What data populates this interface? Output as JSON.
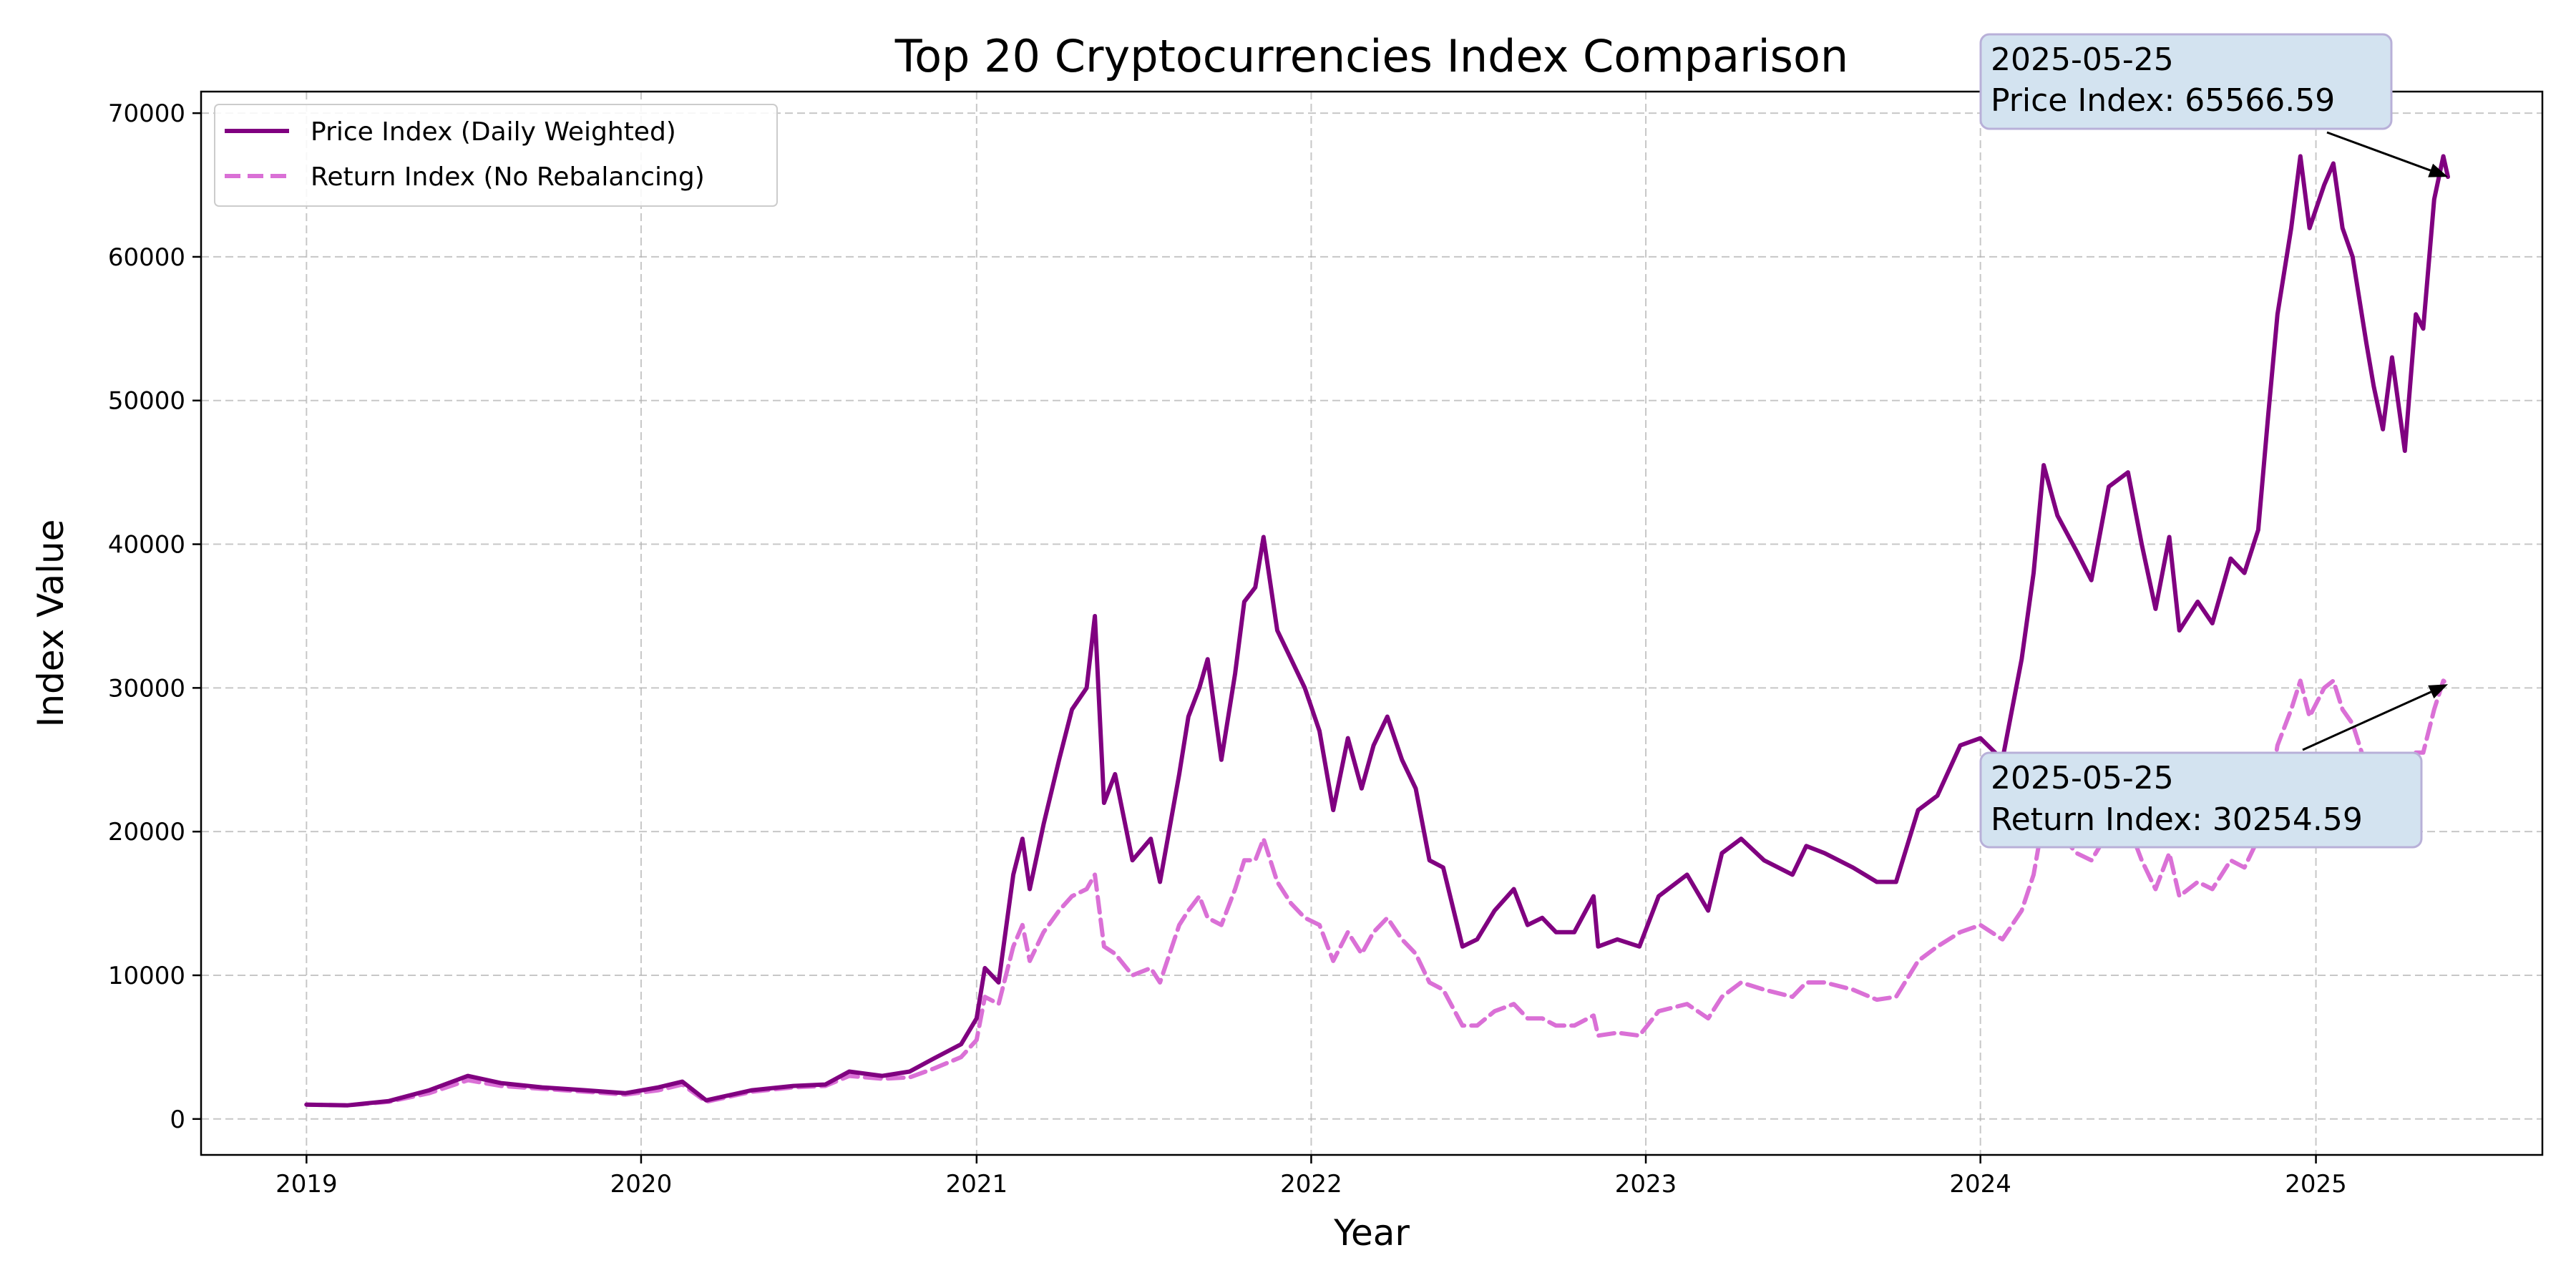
{
  "chart_data": {
    "type": "line",
    "title": "Top 20 Cryptocurrencies Index Comparison",
    "xlabel": "Year",
    "ylabel": "Index Value",
    "xlim": [
      "2018-09-08",
      "2025-09-05"
    ],
    "ylim": [
      -2500,
      71500
    ],
    "x_ticks": [
      "2019",
      "2020",
      "2021",
      "2022",
      "2023",
      "2024",
      "2025"
    ],
    "y_ticks": [
      0,
      10000,
      20000,
      30000,
      40000,
      50000,
      60000,
      70000
    ],
    "y_tick_labels": [
      "0",
      "10000",
      "20000",
      "30000",
      "40000",
      "50000",
      "60000",
      "70000"
    ],
    "grid": true,
    "legend_position": "upper-left",
    "series": [
      {
        "name": "Price Index (Daily Weighted)",
        "color": "#800080",
        "style": "solid",
        "points": [
          [
            "2019-01-01",
            1000
          ],
          [
            "2019-02-15",
            950
          ],
          [
            "2019-04-01",
            1250
          ],
          [
            "2019-05-15",
            2000
          ],
          [
            "2019-06-26",
            3000
          ],
          [
            "2019-08-01",
            2500
          ],
          [
            "2019-09-15",
            2200
          ],
          [
            "2019-11-01",
            2000
          ],
          [
            "2019-12-15",
            1800
          ],
          [
            "2020-01-20",
            2200
          ],
          [
            "2020-02-15",
            2600
          ],
          [
            "2020-03-12",
            1300
          ],
          [
            "2020-05-01",
            2000
          ],
          [
            "2020-06-15",
            2300
          ],
          [
            "2020-07-20",
            2400
          ],
          [
            "2020-08-15",
            3300
          ],
          [
            "2020-09-20",
            3000
          ],
          [
            "2020-10-20",
            3300
          ],
          [
            "2020-11-15",
            4200
          ],
          [
            "2020-12-15",
            5200
          ],
          [
            "2021-01-01",
            7000
          ],
          [
            "2021-01-10",
            10500
          ],
          [
            "2021-01-25",
            9500
          ],
          [
            "2021-02-10",
            17000
          ],
          [
            "2021-02-20",
            19500
          ],
          [
            "2021-02-28",
            16000
          ],
          [
            "2021-03-15",
            20500
          ],
          [
            "2021-04-01",
            25000
          ],
          [
            "2021-04-15",
            28500
          ],
          [
            "2021-05-01",
            30000
          ],
          [
            "2021-05-10",
            35000
          ],
          [
            "2021-05-20",
            22000
          ],
          [
            "2021-06-01",
            24000
          ],
          [
            "2021-06-20",
            18000
          ],
          [
            "2021-07-10",
            19500
          ],
          [
            "2021-07-20",
            16500
          ],
          [
            "2021-08-10",
            24000
          ],
          [
            "2021-08-20",
            28000
          ],
          [
            "2021-09-01",
            30000
          ],
          [
            "2021-09-10",
            32000
          ],
          [
            "2021-09-25",
            25000
          ],
          [
            "2021-10-10",
            31000
          ],
          [
            "2021-10-20",
            36000
          ],
          [
            "2021-11-01",
            37000
          ],
          [
            "2021-11-10",
            40500
          ],
          [
            "2021-11-25",
            34000
          ],
          [
            "2021-12-10",
            32000
          ],
          [
            "2021-12-25",
            30000
          ],
          [
            "2022-01-10",
            27000
          ],
          [
            "2022-01-25",
            21500
          ],
          [
            "2022-02-10",
            26500
          ],
          [
            "2022-02-25",
            23000
          ],
          [
            "2022-03-10",
            26000
          ],
          [
            "2022-03-25",
            28000
          ],
          [
            "2022-04-10",
            25000
          ],
          [
            "2022-04-25",
            23000
          ],
          [
            "2022-05-10",
            18000
          ],
          [
            "2022-05-25",
            17500
          ],
          [
            "2022-06-15",
            12000
          ],
          [
            "2022-07-01",
            12500
          ],
          [
            "2022-07-20",
            14500
          ],
          [
            "2022-08-10",
            16000
          ],
          [
            "2022-08-25",
            13500
          ],
          [
            "2022-09-10",
            14000
          ],
          [
            "2022-09-25",
            13000
          ],
          [
            "2022-10-15",
            13000
          ],
          [
            "2022-11-05",
            15500
          ],
          [
            "2022-11-10",
            12000
          ],
          [
            "2022-12-01",
            12500
          ],
          [
            "2022-12-25",
            12000
          ],
          [
            "2023-01-15",
            15500
          ],
          [
            "2023-02-15",
            17000
          ],
          [
            "2023-03-10",
            14500
          ],
          [
            "2023-03-25",
            18500
          ],
          [
            "2023-04-15",
            19500
          ],
          [
            "2023-05-10",
            18000
          ],
          [
            "2023-06-10",
            17000
          ],
          [
            "2023-06-25",
            19000
          ],
          [
            "2023-07-15",
            18500
          ],
          [
            "2023-08-15",
            17500
          ],
          [
            "2023-09-10",
            16500
          ],
          [
            "2023-10-01",
            16500
          ],
          [
            "2023-10-25",
            21500
          ],
          [
            "2023-11-15",
            22500
          ],
          [
            "2023-12-10",
            26000
          ],
          [
            "2024-01-01",
            26500
          ],
          [
            "2024-01-25",
            25000
          ],
          [
            "2024-02-15",
            32000
          ],
          [
            "2024-02-28",
            38000
          ],
          [
            "2024-03-10",
            45500
          ],
          [
            "2024-03-25",
            42000
          ],
          [
            "2024-04-15",
            39500
          ],
          [
            "2024-05-01",
            37500
          ],
          [
            "2024-05-20",
            44000
          ],
          [
            "2024-06-10",
            45000
          ],
          [
            "2024-06-25",
            40000
          ],
          [
            "2024-07-10",
            35500
          ],
          [
            "2024-07-25",
            40500
          ],
          [
            "2024-08-05",
            34000
          ],
          [
            "2024-08-25",
            36000
          ],
          [
            "2024-09-10",
            34500
          ],
          [
            "2024-09-30",
            39000
          ],
          [
            "2024-10-15",
            38000
          ],
          [
            "2024-10-30",
            41000
          ],
          [
            "2024-11-10",
            49000
          ],
          [
            "2024-11-20",
            56000
          ],
          [
            "2024-12-05",
            62000
          ],
          [
            "2024-12-15",
            67000
          ],
          [
            "2024-12-25",
            62000
          ],
          [
            "2025-01-10",
            65000
          ],
          [
            "2025-01-20",
            66500
          ],
          [
            "2025-01-30",
            62000
          ],
          [
            "2025-02-10",
            60000
          ],
          [
            "2025-02-25",
            54000
          ],
          [
            "2025-03-05",
            51000
          ],
          [
            "2025-03-15",
            48000
          ],
          [
            "2025-03-25",
            53000
          ],
          [
            "2025-04-08",
            46500
          ],
          [
            "2025-04-20",
            56000
          ],
          [
            "2025-04-28",
            55000
          ],
          [
            "2025-05-10",
            64000
          ],
          [
            "2025-05-20",
            67000
          ],
          [
            "2025-05-25",
            65566.59
          ]
        ]
      },
      {
        "name": "Return Index (No Rebalancing)",
        "color": "#da70d6",
        "style": "dashed",
        "points": [
          [
            "2019-01-01",
            1000
          ],
          [
            "2019-02-15",
            950
          ],
          [
            "2019-04-01",
            1200
          ],
          [
            "2019-05-15",
            1800
          ],
          [
            "2019-06-26",
            2700
          ],
          [
            "2019-08-01",
            2300
          ],
          [
            "2019-09-15",
            2100
          ],
          [
            "2019-11-01",
            1900
          ],
          [
            "2019-12-15",
            1700
          ],
          [
            "2020-01-20",
            2000
          ],
          [
            "2020-02-15",
            2400
          ],
          [
            "2020-03-12",
            1200
          ],
          [
            "2020-05-01",
            1900
          ],
          [
            "2020-06-15",
            2200
          ],
          [
            "2020-07-20",
            2300
          ],
          [
            "2020-08-15",
            3000
          ],
          [
            "2020-09-20",
            2800
          ],
          [
            "2020-10-20",
            2900
          ],
          [
            "2020-11-15",
            3500
          ],
          [
            "2020-12-15",
            4300
          ],
          [
            "2021-01-01",
            5500
          ],
          [
            "2021-01-10",
            8500
          ],
          [
            "2021-01-25",
            8000
          ],
          [
            "2021-02-10",
            12000
          ],
          [
            "2021-02-20",
            13500
          ],
          [
            "2021-02-28",
            11000
          ],
          [
            "2021-03-15",
            13000
          ],
          [
            "2021-04-01",
            14500
          ],
          [
            "2021-04-15",
            15500
          ],
          [
            "2021-05-01",
            16000
          ],
          [
            "2021-05-10",
            17000
          ],
          [
            "2021-05-20",
            12000
          ],
          [
            "2021-06-01",
            11500
          ],
          [
            "2021-06-20",
            10000
          ],
          [
            "2021-07-10",
            10500
          ],
          [
            "2021-07-20",
            9500
          ],
          [
            "2021-08-10",
            13500
          ],
          [
            "2021-08-20",
            14500
          ],
          [
            "2021-09-01",
            15500
          ],
          [
            "2021-09-10",
            14000
          ],
          [
            "2021-09-25",
            13500
          ],
          [
            "2021-10-10",
            16000
          ],
          [
            "2021-10-20",
            18000
          ],
          [
            "2021-11-01",
            18000
          ],
          [
            "2021-11-10",
            19500
          ],
          [
            "2021-11-25",
            16500
          ],
          [
            "2021-12-10",
            15000
          ],
          [
            "2021-12-25",
            14000
          ],
          [
            "2022-01-10",
            13500
          ],
          [
            "2022-01-25",
            11000
          ],
          [
            "2022-02-10",
            13000
          ],
          [
            "2022-02-25",
            11500
          ],
          [
            "2022-03-10",
            13000
          ],
          [
            "2022-03-25",
            14000
          ],
          [
            "2022-04-10",
            12500
          ],
          [
            "2022-04-25",
            11500
          ],
          [
            "2022-05-10",
            9500
          ],
          [
            "2022-05-25",
            9000
          ],
          [
            "2022-06-15",
            6500
          ],
          [
            "2022-07-01",
            6500
          ],
          [
            "2022-07-20",
            7500
          ],
          [
            "2022-08-10",
            8000
          ],
          [
            "2022-08-25",
            7000
          ],
          [
            "2022-09-10",
            7000
          ],
          [
            "2022-09-25",
            6500
          ],
          [
            "2022-10-15",
            6500
          ],
          [
            "2022-11-05",
            7200
          ],
          [
            "2022-11-10",
            5800
          ],
          [
            "2022-12-01",
            6000
          ],
          [
            "2022-12-25",
            5800
          ],
          [
            "2023-01-15",
            7500
          ],
          [
            "2023-02-15",
            8000
          ],
          [
            "2023-03-10",
            7000
          ],
          [
            "2023-03-25",
            8500
          ],
          [
            "2023-04-15",
            9500
          ],
          [
            "2023-05-10",
            9000
          ],
          [
            "2023-06-10",
            8500
          ],
          [
            "2023-06-25",
            9500
          ],
          [
            "2023-07-15",
            9500
          ],
          [
            "2023-08-15",
            9000
          ],
          [
            "2023-09-10",
            8300
          ],
          [
            "2023-10-01",
            8500
          ],
          [
            "2023-10-25",
            11000
          ],
          [
            "2023-11-15",
            12000
          ],
          [
            "2023-12-10",
            13000
          ],
          [
            "2024-01-01",
            13500
          ],
          [
            "2024-01-25",
            12500
          ],
          [
            "2024-02-15",
            14500
          ],
          [
            "2024-02-28",
            17000
          ],
          [
            "2024-03-10",
            21000
          ],
          [
            "2024-03-25",
            20000
          ],
          [
            "2024-04-15",
            18500
          ],
          [
            "2024-05-01",
            18000
          ],
          [
            "2024-05-20",
            20000
          ],
          [
            "2024-06-10",
            20500
          ],
          [
            "2024-06-25",
            18000
          ],
          [
            "2024-07-10",
            16000
          ],
          [
            "2024-07-25",
            18500
          ],
          [
            "2024-08-05",
            15500
          ],
          [
            "2024-08-25",
            16500
          ],
          [
            "2024-09-10",
            16000
          ],
          [
            "2024-09-30",
            18000
          ],
          [
            "2024-10-15",
            17500
          ],
          [
            "2024-10-30",
            19500
          ],
          [
            "2024-11-10",
            22000
          ],
          [
            "2024-11-20",
            26000
          ],
          [
            "2024-12-05",
            28500
          ],
          [
            "2024-12-15",
            30500
          ],
          [
            "2024-12-25",
            28000
          ],
          [
            "2025-01-10",
            30000
          ],
          [
            "2025-01-20",
            30500
          ],
          [
            "2025-01-30",
            28500
          ],
          [
            "2025-02-10",
            27500
          ],
          [
            "2025-02-25",
            24500
          ],
          [
            "2025-03-05",
            23000
          ],
          [
            "2025-03-15",
            22000
          ],
          [
            "2025-03-25",
            24000
          ],
          [
            "2025-04-08",
            21500
          ],
          [
            "2025-04-20",
            25500
          ],
          [
            "2025-04-28",
            25500
          ],
          [
            "2025-05-10",
            28500
          ],
          [
            "2025-05-20",
            30500
          ],
          [
            "2025-05-25",
            30254.59
          ]
        ]
      }
    ],
    "annotations": [
      {
        "date": "2025-05-25",
        "line1": "2025-05-25",
        "line2": "Price Index: 65566.59",
        "x": "2025-05-25",
        "y": 65566.59,
        "text_x": "2024-01-01",
        "text_y": 70800
      },
      {
        "date": "2025-05-25",
        "line1": "2025-05-25",
        "line2": "Return Index: 30254.59",
        "x": "2025-05-25",
        "y": 30254.59,
        "text_x": "2024-01-01",
        "text_y": 23500
      }
    ]
  }
}
